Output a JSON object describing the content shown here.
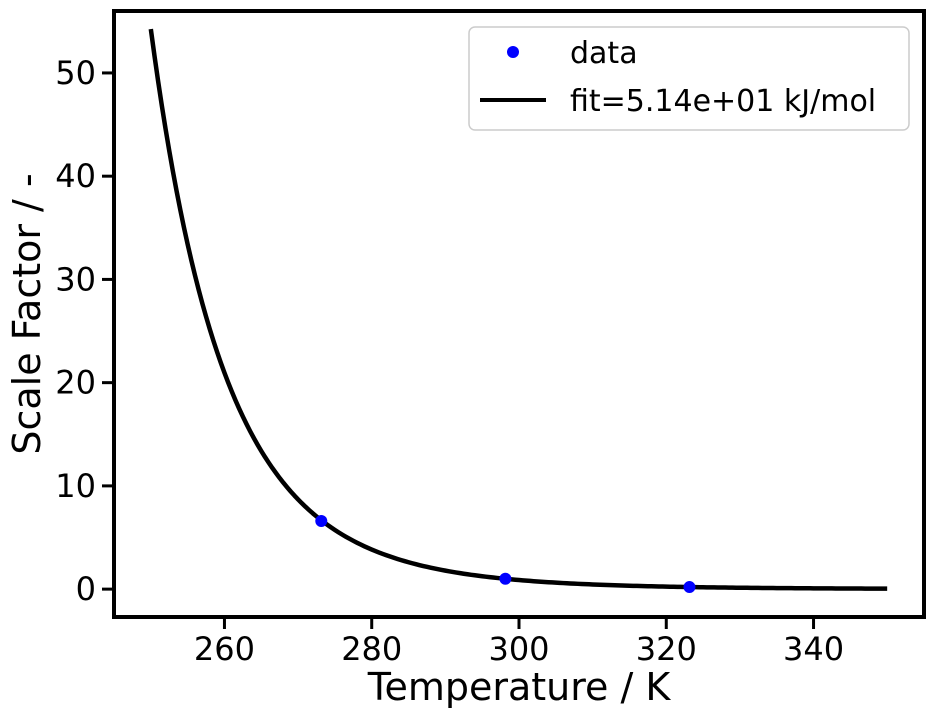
{
  "chart_data": {
    "type": "scatter",
    "title": "",
    "xlabel": "Temperature / K",
    "ylabel": "Scale Factor / -",
    "xlim": [
      245,
      355
    ],
    "ylim": [
      -2.7,
      56
    ],
    "x_ticks": [
      260,
      280,
      300,
      320,
      340
    ],
    "y_ticks": [
      0,
      10,
      20,
      30,
      40,
      50
    ],
    "grid": false,
    "legend_position": "top-right",
    "series": [
      {
        "name": "data",
        "kind": "points",
        "color": "#0000ff",
        "x": [
          273.15,
          298.15,
          323.15
        ],
        "y": [
          6.6,
          1.0,
          0.2
        ]
      },
      {
        "name": "fit=5.14e+01 kJ/mol",
        "kind": "line",
        "color": "#000000",
        "reference_x": 298.15,
        "activation_energy_kj_per_mol": 51.4,
        "x_range": [
          250,
          350
        ]
      }
    ]
  }
}
